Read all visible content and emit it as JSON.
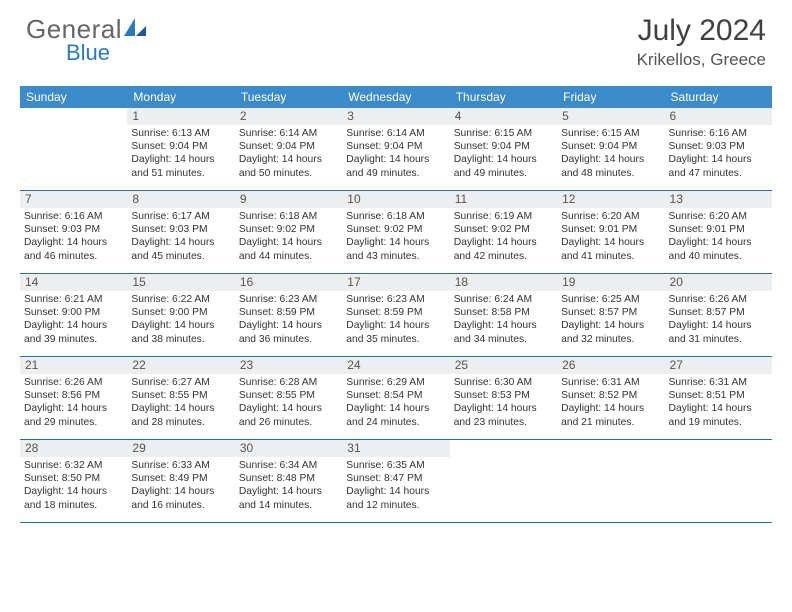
{
  "logo": {
    "text1": "General",
    "text2": "Blue"
  },
  "title": "July 2024",
  "location": "Krikellos, Greece",
  "accent_color": "#3b8bca",
  "border_color": "#2b6fa8",
  "daybar_bg": "#eceef0",
  "day_headers": [
    "Sunday",
    "Monday",
    "Tuesday",
    "Wednesday",
    "Thursday",
    "Friday",
    "Saturday"
  ],
  "weeks": [
    [
      {
        "n": "",
        "sr": "",
        "ss": "",
        "dl1": "",
        "dl2": ""
      },
      {
        "n": "1",
        "sr": "Sunrise: 6:13 AM",
        "ss": "Sunset: 9:04 PM",
        "dl1": "Daylight: 14 hours",
        "dl2": "and 51 minutes."
      },
      {
        "n": "2",
        "sr": "Sunrise: 6:14 AM",
        "ss": "Sunset: 9:04 PM",
        "dl1": "Daylight: 14 hours",
        "dl2": "and 50 minutes."
      },
      {
        "n": "3",
        "sr": "Sunrise: 6:14 AM",
        "ss": "Sunset: 9:04 PM",
        "dl1": "Daylight: 14 hours",
        "dl2": "and 49 minutes."
      },
      {
        "n": "4",
        "sr": "Sunrise: 6:15 AM",
        "ss": "Sunset: 9:04 PM",
        "dl1": "Daylight: 14 hours",
        "dl2": "and 49 minutes."
      },
      {
        "n": "5",
        "sr": "Sunrise: 6:15 AM",
        "ss": "Sunset: 9:04 PM",
        "dl1": "Daylight: 14 hours",
        "dl2": "and 48 minutes."
      },
      {
        "n": "6",
        "sr": "Sunrise: 6:16 AM",
        "ss": "Sunset: 9:03 PM",
        "dl1": "Daylight: 14 hours",
        "dl2": "and 47 minutes."
      }
    ],
    [
      {
        "n": "7",
        "sr": "Sunrise: 6:16 AM",
        "ss": "Sunset: 9:03 PM",
        "dl1": "Daylight: 14 hours",
        "dl2": "and 46 minutes."
      },
      {
        "n": "8",
        "sr": "Sunrise: 6:17 AM",
        "ss": "Sunset: 9:03 PM",
        "dl1": "Daylight: 14 hours",
        "dl2": "and 45 minutes."
      },
      {
        "n": "9",
        "sr": "Sunrise: 6:18 AM",
        "ss": "Sunset: 9:02 PM",
        "dl1": "Daylight: 14 hours",
        "dl2": "and 44 minutes."
      },
      {
        "n": "10",
        "sr": "Sunrise: 6:18 AM",
        "ss": "Sunset: 9:02 PM",
        "dl1": "Daylight: 14 hours",
        "dl2": "and 43 minutes."
      },
      {
        "n": "11",
        "sr": "Sunrise: 6:19 AM",
        "ss": "Sunset: 9:02 PM",
        "dl1": "Daylight: 14 hours",
        "dl2": "and 42 minutes."
      },
      {
        "n": "12",
        "sr": "Sunrise: 6:20 AM",
        "ss": "Sunset: 9:01 PM",
        "dl1": "Daylight: 14 hours",
        "dl2": "and 41 minutes."
      },
      {
        "n": "13",
        "sr": "Sunrise: 6:20 AM",
        "ss": "Sunset: 9:01 PM",
        "dl1": "Daylight: 14 hours",
        "dl2": "and 40 minutes."
      }
    ],
    [
      {
        "n": "14",
        "sr": "Sunrise: 6:21 AM",
        "ss": "Sunset: 9:00 PM",
        "dl1": "Daylight: 14 hours",
        "dl2": "and 39 minutes."
      },
      {
        "n": "15",
        "sr": "Sunrise: 6:22 AM",
        "ss": "Sunset: 9:00 PM",
        "dl1": "Daylight: 14 hours",
        "dl2": "and 38 minutes."
      },
      {
        "n": "16",
        "sr": "Sunrise: 6:23 AM",
        "ss": "Sunset: 8:59 PM",
        "dl1": "Daylight: 14 hours",
        "dl2": "and 36 minutes."
      },
      {
        "n": "17",
        "sr": "Sunrise: 6:23 AM",
        "ss": "Sunset: 8:59 PM",
        "dl1": "Daylight: 14 hours",
        "dl2": "and 35 minutes."
      },
      {
        "n": "18",
        "sr": "Sunrise: 6:24 AM",
        "ss": "Sunset: 8:58 PM",
        "dl1": "Daylight: 14 hours",
        "dl2": "and 34 minutes."
      },
      {
        "n": "19",
        "sr": "Sunrise: 6:25 AM",
        "ss": "Sunset: 8:57 PM",
        "dl1": "Daylight: 14 hours",
        "dl2": "and 32 minutes."
      },
      {
        "n": "20",
        "sr": "Sunrise: 6:26 AM",
        "ss": "Sunset: 8:57 PM",
        "dl1": "Daylight: 14 hours",
        "dl2": "and 31 minutes."
      }
    ],
    [
      {
        "n": "21",
        "sr": "Sunrise: 6:26 AM",
        "ss": "Sunset: 8:56 PM",
        "dl1": "Daylight: 14 hours",
        "dl2": "and 29 minutes."
      },
      {
        "n": "22",
        "sr": "Sunrise: 6:27 AM",
        "ss": "Sunset: 8:55 PM",
        "dl1": "Daylight: 14 hours",
        "dl2": "and 28 minutes."
      },
      {
        "n": "23",
        "sr": "Sunrise: 6:28 AM",
        "ss": "Sunset: 8:55 PM",
        "dl1": "Daylight: 14 hours",
        "dl2": "and 26 minutes."
      },
      {
        "n": "24",
        "sr": "Sunrise: 6:29 AM",
        "ss": "Sunset: 8:54 PM",
        "dl1": "Daylight: 14 hours",
        "dl2": "and 24 minutes."
      },
      {
        "n": "25",
        "sr": "Sunrise: 6:30 AM",
        "ss": "Sunset: 8:53 PM",
        "dl1": "Daylight: 14 hours",
        "dl2": "and 23 minutes."
      },
      {
        "n": "26",
        "sr": "Sunrise: 6:31 AM",
        "ss": "Sunset: 8:52 PM",
        "dl1": "Daylight: 14 hours",
        "dl2": "and 21 minutes."
      },
      {
        "n": "27",
        "sr": "Sunrise: 6:31 AM",
        "ss": "Sunset: 8:51 PM",
        "dl1": "Daylight: 14 hours",
        "dl2": "and 19 minutes."
      }
    ],
    [
      {
        "n": "28",
        "sr": "Sunrise: 6:32 AM",
        "ss": "Sunset: 8:50 PM",
        "dl1": "Daylight: 14 hours",
        "dl2": "and 18 minutes."
      },
      {
        "n": "29",
        "sr": "Sunrise: 6:33 AM",
        "ss": "Sunset: 8:49 PM",
        "dl1": "Daylight: 14 hours",
        "dl2": "and 16 minutes."
      },
      {
        "n": "30",
        "sr": "Sunrise: 6:34 AM",
        "ss": "Sunset: 8:48 PM",
        "dl1": "Daylight: 14 hours",
        "dl2": "and 14 minutes."
      },
      {
        "n": "31",
        "sr": "Sunrise: 6:35 AM",
        "ss": "Sunset: 8:47 PM",
        "dl1": "Daylight: 14 hours",
        "dl2": "and 12 minutes."
      },
      {
        "n": "",
        "sr": "",
        "ss": "",
        "dl1": "",
        "dl2": ""
      },
      {
        "n": "",
        "sr": "",
        "ss": "",
        "dl1": "",
        "dl2": ""
      },
      {
        "n": "",
        "sr": "",
        "ss": "",
        "dl1": "",
        "dl2": ""
      }
    ]
  ]
}
